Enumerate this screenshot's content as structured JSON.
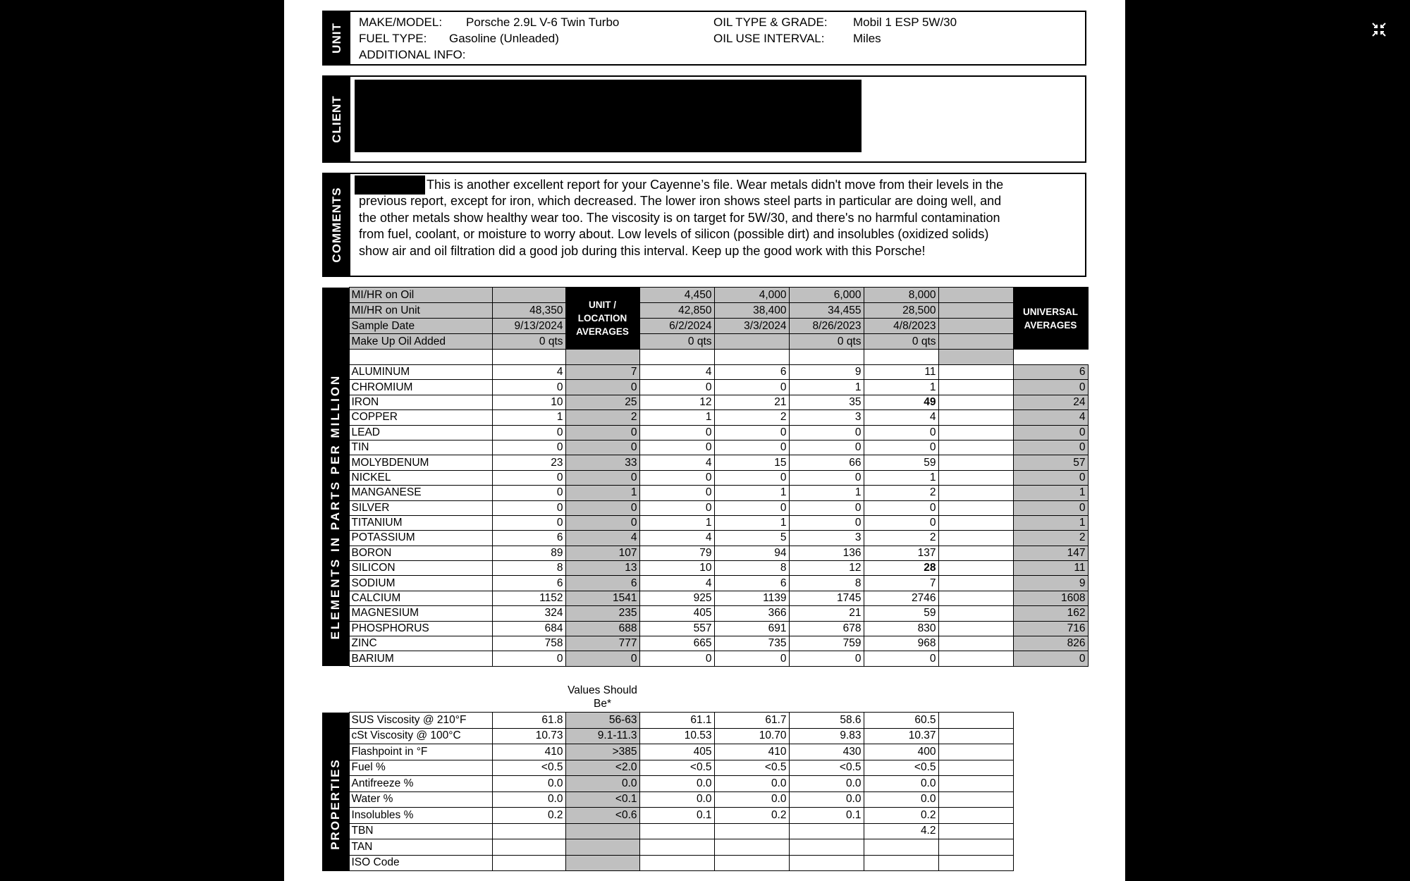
{
  "unit": {
    "section_label": "UNIT",
    "make_model_label": "MAKE/MODEL:",
    "make_model": "Porsche 2.9L V-6 Twin Turbo",
    "fuel_type_label": "FUEL TYPE:",
    "fuel_type": "Gasoline (Unleaded)",
    "additional_info_label": "ADDITIONAL INFO:",
    "oil_type_label": "OIL TYPE & GRADE:",
    "oil_type": "Mobil 1 ESP 5W/30",
    "oil_interval_label": "OIL USE INTERVAL:",
    "oil_interval": "Miles"
  },
  "client": {
    "section_label": "CLIENT"
  },
  "comments": {
    "section_label": "COMMENTS",
    "text": "This is another excellent report for your Cayenne’s file. Wear metals didn't move from their levels in the previous report, except for iron, which decreased. The lower iron shows steel parts in particular are doing well, and the other metals show healthy wear too. The viscosity is on target for 5W/30, and there's no harmful contamination from fuel, coolant, or moisture to worry about. Low levels of silicon (possible dirt) and insolubles (oxidized solids) show air and oil filtration did a good job during this interval. Keep up the good work with this Porsche!"
  },
  "elements": {
    "section_label": "ELEMENTS IN PARTS PER MILLION",
    "unit_avg_header": "UNIT / LOCATION AVERAGES",
    "universal_avg_header": "UNIVERSAL AVERAGES",
    "header_rows": [
      {
        "label": "MI/HR on Oil",
        "values": [
          "",
          "4,450",
          "4,000",
          "6,000",
          "8,000",
          ""
        ]
      },
      {
        "label": "MI/HR on Unit",
        "values": [
          "48,350",
          "42,850",
          "38,400",
          "34,455",
          "28,500",
          ""
        ]
      },
      {
        "label": "Sample Date",
        "values": [
          "9/13/2024",
          "6/2/2024",
          "3/3/2024",
          "8/26/2023",
          "4/8/2023",
          ""
        ]
      },
      {
        "label": "Make Up Oil Added",
        "values": [
          "0 qts",
          "0 qts",
          "",
          "0 qts",
          "0 qts",
          ""
        ]
      }
    ],
    "rows": [
      {
        "name": "ALUMINUM",
        "values": [
          "4",
          "7",
          "4",
          "6",
          "9",
          "11",
          "",
          "6"
        ]
      },
      {
        "name": "CHROMIUM",
        "values": [
          "0",
          "0",
          "0",
          "0",
          "1",
          "1",
          "",
          "0"
        ]
      },
      {
        "name": "IRON",
        "values": [
          "10",
          "25",
          "12",
          "21",
          "35",
          "49",
          "",
          "24"
        ],
        "bold": [
          5
        ]
      },
      {
        "name": "COPPER",
        "values": [
          "1",
          "2",
          "1",
          "2",
          "3",
          "4",
          "",
          "4"
        ]
      },
      {
        "name": "LEAD",
        "values": [
          "0",
          "0",
          "0",
          "0",
          "0",
          "0",
          "",
          "0"
        ]
      },
      {
        "name": "TIN",
        "values": [
          "0",
          "0",
          "0",
          "0",
          "0",
          "0",
          "",
          "0"
        ]
      },
      {
        "name": "MOLYBDENUM",
        "values": [
          "23",
          "33",
          "4",
          "15",
          "66",
          "59",
          "",
          "57"
        ]
      },
      {
        "name": "NICKEL",
        "values": [
          "0",
          "0",
          "0",
          "0",
          "0",
          "1",
          "",
          "0"
        ]
      },
      {
        "name": "MANGANESE",
        "values": [
          "0",
          "1",
          "0",
          "1",
          "1",
          "2",
          "",
          "1"
        ]
      },
      {
        "name": "SILVER",
        "values": [
          "0",
          "0",
          "0",
          "0",
          "0",
          "0",
          "",
          "0"
        ]
      },
      {
        "name": "TITANIUM",
        "values": [
          "0",
          "0",
          "1",
          "1",
          "0",
          "0",
          "",
          "1"
        ]
      },
      {
        "name": "POTASSIUM",
        "values": [
          "6",
          "4",
          "4",
          "5",
          "3",
          "2",
          "",
          "2"
        ]
      },
      {
        "name": "BORON",
        "values": [
          "89",
          "107",
          "79",
          "94",
          "136",
          "137",
          "",
          "147"
        ]
      },
      {
        "name": "SILICON",
        "values": [
          "8",
          "13",
          "10",
          "8",
          "12",
          "28",
          "",
          "11"
        ],
        "bold": [
          5
        ]
      },
      {
        "name": "SODIUM",
        "values": [
          "6",
          "6",
          "4",
          "6",
          "8",
          "7",
          "",
          "9"
        ]
      },
      {
        "name": "CALCIUM",
        "values": [
          "1152",
          "1541",
          "925",
          "1139",
          "1745",
          "2746",
          "",
          "1608"
        ]
      },
      {
        "name": "MAGNESIUM",
        "values": [
          "324",
          "235",
          "405",
          "366",
          "21",
          "59",
          "",
          "162"
        ]
      },
      {
        "name": "PHOSPHORUS",
        "values": [
          "684",
          "688",
          "557",
          "691",
          "678",
          "830",
          "",
          "716"
        ]
      },
      {
        "name": "ZINC",
        "values": [
          "758",
          "777",
          "665",
          "735",
          "759",
          "968",
          "",
          "826"
        ]
      },
      {
        "name": "BARIUM",
        "values": [
          "0",
          "0",
          "0",
          "0",
          "0",
          "0",
          "",
          "0"
        ]
      }
    ]
  },
  "properties": {
    "section_label": "PROPERTIES",
    "should_be_label": "Values Should Be*",
    "rows": [
      {
        "name": "SUS Viscosity @ 210°F",
        "values": [
          "61.8",
          "56-63",
          "61.1",
          "61.7",
          "58.6",
          "60.5",
          ""
        ]
      },
      {
        "name": "cSt Viscosity @ 100°C",
        "values": [
          "10.73",
          "9.1-11.3",
          "10.53",
          "10.70",
          "9.83",
          "10.37",
          ""
        ]
      },
      {
        "name": "Flashpoint in °F",
        "values": [
          "410",
          ">385",
          "405",
          "410",
          "430",
          "400",
          ""
        ]
      },
      {
        "name": "Fuel %",
        "values": [
          "<0.5",
          "<2.0",
          "<0.5",
          "<0.5",
          "<0.5",
          "<0.5",
          ""
        ]
      },
      {
        "name": "Antifreeze %",
        "values": [
          "0.0",
          "0.0",
          "0.0",
          "0.0",
          "0.0",
          "0.0",
          ""
        ]
      },
      {
        "name": "Water %",
        "values": [
          "0.0",
          "<0.1",
          "0.0",
          "0.0",
          "0.0",
          "0.0",
          ""
        ]
      },
      {
        "name": "Insolubles %",
        "values": [
          "0.2",
          "<0.6",
          "0.1",
          "0.2",
          "0.1",
          "0.2",
          ""
        ]
      },
      {
        "name": "TBN",
        "values": [
          "",
          "",
          "",
          "",
          "",
          "4.2",
          ""
        ]
      },
      {
        "name": "TAN",
        "values": [
          "",
          "",
          "",
          "",
          "",
          "",
          ""
        ]
      },
      {
        "name": "ISO Code",
        "values": [
          "",
          "",
          "",
          "",
          "",
          "",
          ""
        ]
      }
    ]
  },
  "viewer": {
    "exit_fullscreen_icon": "collapse-arrows-icon"
  },
  "colors": {
    "shade": "#c0c0c0",
    "bar": "#000000"
  }
}
